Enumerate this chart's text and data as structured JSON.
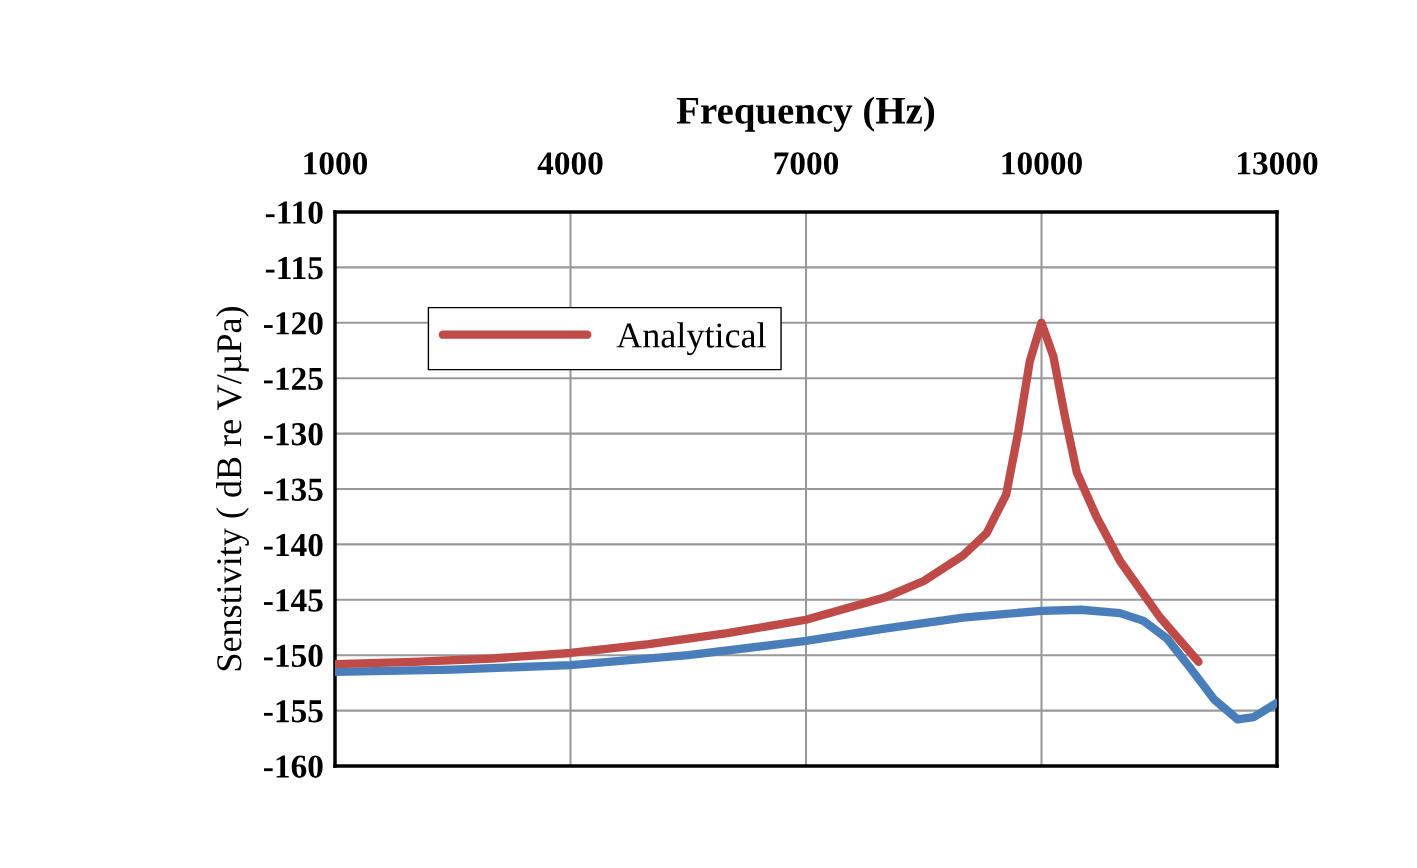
{
  "chart_data": {
    "type": "line",
    "xlabel": "Frequency (Hz)",
    "ylabel": "Senstivity ( dB re V/µPa)",
    "xlim": [
      1000,
      13000
    ],
    "xticks": [
      1000,
      4000,
      7000,
      10000,
      13000
    ],
    "ylim": [
      -160,
      -110
    ],
    "yticks": [
      -110,
      -115,
      -120,
      -125,
      -130,
      -135,
      -140,
      -145,
      -150,
      -155,
      -160
    ],
    "grid": true,
    "legend": "top left",
    "marker": "none",
    "line_style": "solid",
    "series": [
      {
        "color": "#4a7ebb",
        "x": [
          1000,
          2500,
          4000,
          5500,
          7000,
          8000,
          9000,
          10000,
          10500,
          11000,
          11300,
          11600,
          11900,
          12200,
          12500,
          12700,
          13000
        ],
        "values": [
          -151.5,
          -151.3,
          -150.9,
          -150.0,
          -148.7,
          -147.6,
          -146.6,
          -146.0,
          -145.9,
          -146.2,
          -146.9,
          -148.5,
          -151.2,
          -154.0,
          -155.8,
          -155.6,
          -154.3
        ]
      },
      {
        "name": "Analytical",
        "color": "#be4b48",
        "x": [
          1000,
          2000,
          3000,
          4000,
          5000,
          6000,
          7000,
          8000,
          8500,
          9000,
          9300,
          9550,
          9700,
          9850,
          10000,
          10150,
          10300,
          10450,
          10700,
          11000,
          11500,
          12000
        ],
        "values": [
          -150.8,
          -150.6,
          -150.3,
          -149.8,
          -149.0,
          -148.0,
          -146.8,
          -144.8,
          -143.3,
          -141.0,
          -139.0,
          -135.5,
          -130.0,
          -123.5,
          -120.0,
          -123.0,
          -128.5,
          -133.5,
          -137.5,
          -141.5,
          -146.5,
          -150.6
        ]
      }
    ]
  }
}
